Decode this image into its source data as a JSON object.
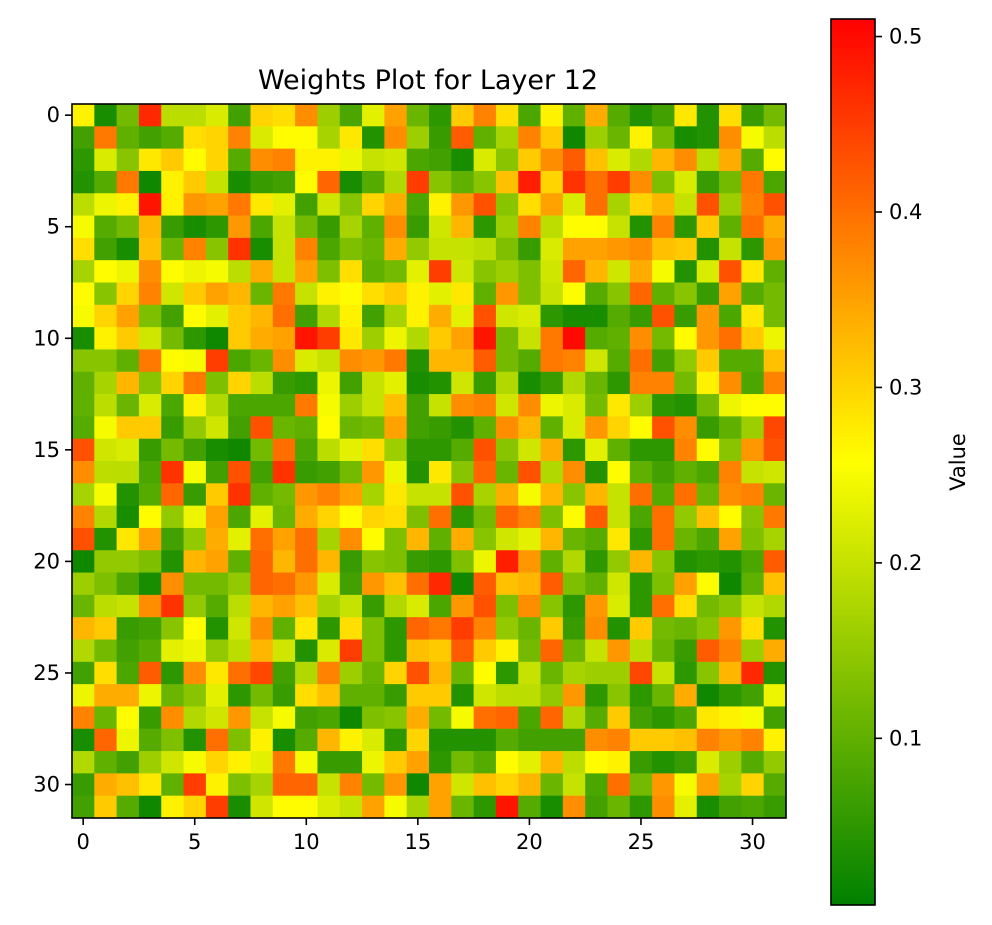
{
  "chart_data": {
    "type": "heatmap",
    "title": "Weights Plot for Layer 12",
    "rows": 32,
    "cols": 32,
    "x_ticks": [
      0,
      5,
      10,
      15,
      20,
      25,
      30
    ],
    "y_ticks": [
      0,
      5,
      10,
      15,
      20,
      25,
      30
    ],
    "colorbar": {
      "label": "Value",
      "min": 0.005,
      "max": 0.51,
      "ticks": [
        0.1,
        0.2,
        0.3,
        0.4,
        0.5
      ],
      "colors": [
        "#008000",
        "#ffff00",
        "#ff0000"
      ]
    },
    "values": [
      [
        0.27,
        0.03,
        0.12,
        0.47,
        0.19,
        0.19,
        0.22,
        0.07,
        0.3,
        0.29,
        0.37,
        0.16,
        0.08,
        0.23,
        0.35,
        0.11,
        0.05,
        0.31,
        0.38,
        0.29,
        0.08,
        0.27,
        0.1,
        0.34,
        0.09,
        0.04,
        0.07,
        0.28,
        0.04,
        0.29,
        0.06,
        0.12
      ],
      [
        0.07,
        0.39,
        0.1,
        0.07,
        0.09,
        0.29,
        0.3,
        0.38,
        0.22,
        0.26,
        0.26,
        0.17,
        0.28,
        0.04,
        0.37,
        0.16,
        0.06,
        0.42,
        0.1,
        0.17,
        0.38,
        0.31,
        0.02,
        0.16,
        0.11,
        0.27,
        0.12,
        0.03,
        0.04,
        0.37,
        0.25,
        0.19
      ],
      [
        0.05,
        0.22,
        0.14,
        0.28,
        0.31,
        0.26,
        0.3,
        0.09,
        0.37,
        0.38,
        0.27,
        0.27,
        0.24,
        0.2,
        0.21,
        0.08,
        0.07,
        0.03,
        0.22,
        0.14,
        0.31,
        0.37,
        0.42,
        0.32,
        0.22,
        0.18,
        0.33,
        0.37,
        0.19,
        0.34,
        0.09,
        0.26
      ],
      [
        0.04,
        0.09,
        0.39,
        0.02,
        0.27,
        0.31,
        0.2,
        0.03,
        0.06,
        0.07,
        0.26,
        0.41,
        0.03,
        0.09,
        0.18,
        0.45,
        0.14,
        0.1,
        0.14,
        0.32,
        0.48,
        0.3,
        0.46,
        0.4,
        0.45,
        0.37,
        0.13,
        0.22,
        0.06,
        0.12,
        0.39,
        0.08
      ],
      [
        0.19,
        0.24,
        0.27,
        0.49,
        0.27,
        0.36,
        0.35,
        0.39,
        0.28,
        0.23,
        0.07,
        0.21,
        0.14,
        0.3,
        0.34,
        0.08,
        0.27,
        0.36,
        0.43,
        0.14,
        0.29,
        0.35,
        0.22,
        0.4,
        0.17,
        0.3,
        0.33,
        0.2,
        0.43,
        0.16,
        0.38,
        0.43
      ],
      [
        0.25,
        0.09,
        0.12,
        0.33,
        0.06,
        0.03,
        0.05,
        0.36,
        0.08,
        0.2,
        0.12,
        0.06,
        0.17,
        0.1,
        0.37,
        0.06,
        0.21,
        0.33,
        0.05,
        0.16,
        0.38,
        0.19,
        0.26,
        0.26,
        0.2,
        0.04,
        0.38,
        0.05,
        0.31,
        0.1,
        0.4,
        0.34
      ],
      [
        0.29,
        0.07,
        0.03,
        0.32,
        0.11,
        0.38,
        0.14,
        0.46,
        0.03,
        0.2,
        0.38,
        0.08,
        0.13,
        0.11,
        0.34,
        0.15,
        0.2,
        0.2,
        0.19,
        0.13,
        0.06,
        0.22,
        0.35,
        0.35,
        0.36,
        0.37,
        0.32,
        0.31,
        0.04,
        0.2,
        0.05,
        0.36
      ],
      [
        0.17,
        0.26,
        0.24,
        0.37,
        0.26,
        0.24,
        0.25,
        0.19,
        0.34,
        0.2,
        0.35,
        0.13,
        0.29,
        0.1,
        0.12,
        0.23,
        0.45,
        0.21,
        0.14,
        0.16,
        0.13,
        0.21,
        0.41,
        0.33,
        0.21,
        0.34,
        0.25,
        0.04,
        0.22,
        0.43,
        0.28,
        0.1
      ],
      [
        0.26,
        0.14,
        0.3,
        0.38,
        0.21,
        0.31,
        0.35,
        0.33,
        0.11,
        0.39,
        0.2,
        0.27,
        0.26,
        0.29,
        0.31,
        0.27,
        0.23,
        0.28,
        0.1,
        0.36,
        0.13,
        0.2,
        0.26,
        0.09,
        0.14,
        0.41,
        0.1,
        0.14,
        0.06,
        0.35,
        0.09,
        0.12
      ],
      [
        0.25,
        0.3,
        0.35,
        0.13,
        0.07,
        0.26,
        0.23,
        0.31,
        0.33,
        0.4,
        0.07,
        0.18,
        0.27,
        0.07,
        0.17,
        0.27,
        0.34,
        0.23,
        0.43,
        0.21,
        0.22,
        0.05,
        0.03,
        0.03,
        0.09,
        0.06,
        0.43,
        0.06,
        0.36,
        0.08,
        0.28,
        0.12
      ],
      [
        0.03,
        0.27,
        0.31,
        0.21,
        0.12,
        0.05,
        0.02,
        0.31,
        0.34,
        0.35,
        0.49,
        0.45,
        0.28,
        0.16,
        0.24,
        0.18,
        0.31,
        0.35,
        0.49,
        0.12,
        0.2,
        0.39,
        0.5,
        0.09,
        0.1,
        0.37,
        0.12,
        0.26,
        0.36,
        0.4,
        0.31,
        0.24
      ],
      [
        0.14,
        0.14,
        0.1,
        0.39,
        0.26,
        0.25,
        0.45,
        0.08,
        0.11,
        0.37,
        0.22,
        0.2,
        0.37,
        0.36,
        0.39,
        0.04,
        0.33,
        0.33,
        0.42,
        0.12,
        0.09,
        0.39,
        0.38,
        0.21,
        0.09,
        0.4,
        0.07,
        0.15,
        0.31,
        0.09,
        0.09,
        0.32
      ],
      [
        0.1,
        0.17,
        0.33,
        0.14,
        0.3,
        0.39,
        0.13,
        0.3,
        0.19,
        0.06,
        0.05,
        0.24,
        0.07,
        0.2,
        0.23,
        0.03,
        0.04,
        0.21,
        0.06,
        0.18,
        0.03,
        0.06,
        0.18,
        0.11,
        0.05,
        0.38,
        0.38,
        0.12,
        0.27,
        0.37,
        0.08,
        0.38
      ],
      [
        0.1,
        0.19,
        0.11,
        0.22,
        0.08,
        0.27,
        0.18,
        0.08,
        0.08,
        0.08,
        0.39,
        0.25,
        0.16,
        0.2,
        0.32,
        0.07,
        0.2,
        0.37,
        0.38,
        0.21,
        0.37,
        0.24,
        0.22,
        0.12,
        0.28,
        0.16,
        0.05,
        0.04,
        0.12,
        0.24,
        0.26,
        0.26
      ],
      [
        0.09,
        0.25,
        0.31,
        0.31,
        0.06,
        0.15,
        0.21,
        0.07,
        0.43,
        0.11,
        0.1,
        0.26,
        0.11,
        0.12,
        0.35,
        0.07,
        0.06,
        0.04,
        0.1,
        0.37,
        0.33,
        0.1,
        0.22,
        0.36,
        0.3,
        0.26,
        0.43,
        0.37,
        0.06,
        0.1,
        0.16,
        0.44
      ],
      [
        0.43,
        0.21,
        0.22,
        0.06,
        0.12,
        0.07,
        0.03,
        0.02,
        0.12,
        0.4,
        0.08,
        0.19,
        0.23,
        0.29,
        0.16,
        0.05,
        0.05,
        0.09,
        0.43,
        0.14,
        0.21,
        0.34,
        0.05,
        0.23,
        0.1,
        0.05,
        0.05,
        0.38,
        0.26,
        0.14,
        0.36,
        0.43
      ],
      [
        0.37,
        0.19,
        0.19,
        0.08,
        0.46,
        0.25,
        0.07,
        0.43,
        0.07,
        0.46,
        0.06,
        0.07,
        0.12,
        0.36,
        0.24,
        0.04,
        0.28,
        0.14,
        0.41,
        0.11,
        0.43,
        0.18,
        0.37,
        0.04,
        0.26,
        0.1,
        0.07,
        0.1,
        0.08,
        0.38,
        0.2,
        0.21
      ],
      [
        0.17,
        0.25,
        0.04,
        0.09,
        0.41,
        0.06,
        0.31,
        0.46,
        0.1,
        0.12,
        0.36,
        0.38,
        0.35,
        0.17,
        0.28,
        0.2,
        0.2,
        0.43,
        0.17,
        0.34,
        0.25,
        0.33,
        0.14,
        0.33,
        0.2,
        0.4,
        0.09,
        0.4,
        0.11,
        0.37,
        0.38,
        0.11
      ],
      [
        0.38,
        0.18,
        0.03,
        0.26,
        0.15,
        0.24,
        0.35,
        0.08,
        0.23,
        0.11,
        0.34,
        0.3,
        0.26,
        0.3,
        0.29,
        0.13,
        0.4,
        0.05,
        0.12,
        0.41,
        0.38,
        0.13,
        0.26,
        0.42,
        0.2,
        0.08,
        0.4,
        0.15,
        0.32,
        0.26,
        0.14,
        0.39
      ],
      [
        0.43,
        0.04,
        0.28,
        0.35,
        0.07,
        0.15,
        0.34,
        0.23,
        0.4,
        0.35,
        0.4,
        0.17,
        0.37,
        0.26,
        0.13,
        0.33,
        0.1,
        0.34,
        0.14,
        0.21,
        0.23,
        0.33,
        0.11,
        0.09,
        0.28,
        0.05,
        0.4,
        0.11,
        0.08,
        0.35,
        0.13,
        0.17
      ],
      [
        0.02,
        0.15,
        0.15,
        0.13,
        0.04,
        0.33,
        0.35,
        0.1,
        0.41,
        0.33,
        0.4,
        0.33,
        0.06,
        0.14,
        0.13,
        0.06,
        0.05,
        0.13,
        0.24,
        0.48,
        0.36,
        0.1,
        0.18,
        0.05,
        0.15,
        0.33,
        0.14,
        0.04,
        0.05,
        0.04,
        0.08,
        0.42
      ],
      [
        0.16,
        0.13,
        0.08,
        0.03,
        0.37,
        0.12,
        0.12,
        0.15,
        0.41,
        0.4,
        0.36,
        0.22,
        0.07,
        0.36,
        0.32,
        0.4,
        0.47,
        0.02,
        0.42,
        0.32,
        0.33,
        0.42,
        0.13,
        0.1,
        0.21,
        0.05,
        0.13,
        0.35,
        0.26,
        0.02,
        0.1,
        0.32
      ],
      [
        0.11,
        0.19,
        0.2,
        0.37,
        0.46,
        0.15,
        0.09,
        0.19,
        0.33,
        0.35,
        0.32,
        0.17,
        0.2,
        0.06,
        0.18,
        0.22,
        0.08,
        0.36,
        0.43,
        0.13,
        0.37,
        0.14,
        0.05,
        0.36,
        0.22,
        0.05,
        0.4,
        0.29,
        0.12,
        0.14,
        0.2,
        0.18
      ],
      [
        0.33,
        0.31,
        0.06,
        0.07,
        0.14,
        0.26,
        0.04,
        0.21,
        0.37,
        0.1,
        0.28,
        0.05,
        0.29,
        0.13,
        0.05,
        0.41,
        0.39,
        0.45,
        0.38,
        0.15,
        0.11,
        0.31,
        0.06,
        0.37,
        0.04,
        0.31,
        0.12,
        0.11,
        0.14,
        0.36,
        0.29,
        0.04
      ],
      [
        0.18,
        0.12,
        0.07,
        0.09,
        0.23,
        0.24,
        0.15,
        0.19,
        0.33,
        0.21,
        0.04,
        0.22,
        0.45,
        0.13,
        0.05,
        0.32,
        0.31,
        0.42,
        0.31,
        0.27,
        0.12,
        0.41,
        0.11,
        0.2,
        0.36,
        0.19,
        0.11,
        0.06,
        0.42,
        0.38,
        0.16,
        0.34
      ],
      [
        0.07,
        0.29,
        0.08,
        0.42,
        0.05,
        0.37,
        0.28,
        0.4,
        0.44,
        0.07,
        0.18,
        0.38,
        0.16,
        0.11,
        0.3,
        0.43,
        0.33,
        0.11,
        0.26,
        0.05,
        0.2,
        0.11,
        0.17,
        0.16,
        0.16,
        0.44,
        0.2,
        0.05,
        0.14,
        0.33,
        0.47,
        0.04
      ],
      [
        0.24,
        0.34,
        0.34,
        0.24,
        0.11,
        0.14,
        0.23,
        0.05,
        0.12,
        0.06,
        0.29,
        0.32,
        0.1,
        0.1,
        0.06,
        0.31,
        0.31,
        0.04,
        0.21,
        0.19,
        0.19,
        0.15,
        0.36,
        0.05,
        0.14,
        0.05,
        0.11,
        0.34,
        0.02,
        0.05,
        0.07,
        0.24
      ],
      [
        0.38,
        0.11,
        0.26,
        0.06,
        0.37,
        0.18,
        0.21,
        0.36,
        0.2,
        0.25,
        0.07,
        0.08,
        0.02,
        0.13,
        0.14,
        0.34,
        0.12,
        0.25,
        0.4,
        0.41,
        0.08,
        0.41,
        0.18,
        0.09,
        0.31,
        0.07,
        0.05,
        0.08,
        0.28,
        0.27,
        0.25,
        0.07
      ],
      [
        0.03,
        0.41,
        0.24,
        0.09,
        0.13,
        0.04,
        0.4,
        0.13,
        0.27,
        0.03,
        0.09,
        0.33,
        0.27,
        0.22,
        0.05,
        0.3,
        0.04,
        0.04,
        0.04,
        0.09,
        0.07,
        0.07,
        0.07,
        0.37,
        0.38,
        0.31,
        0.31,
        0.32,
        0.38,
        0.36,
        0.38,
        0.27
      ],
      [
        0.18,
        0.1,
        0.07,
        0.16,
        0.21,
        0.25,
        0.3,
        0.27,
        0.23,
        0.39,
        0.25,
        0.06,
        0.06,
        0.24,
        0.31,
        0.35,
        0.05,
        0.12,
        0.09,
        0.26,
        0.23,
        0.33,
        0.19,
        0.26,
        0.27,
        0.06,
        0.04,
        0.06,
        0.22,
        0.16,
        0.09,
        0.15
      ],
      [
        0.06,
        0.34,
        0.32,
        0.28,
        0.1,
        0.45,
        0.27,
        0.13,
        0.17,
        0.41,
        0.41,
        0.2,
        0.38,
        0.12,
        0.36,
        0.02,
        0.35,
        0.21,
        0.32,
        0.3,
        0.33,
        0.11,
        0.2,
        0.08,
        0.4,
        0.12,
        0.36,
        0.25,
        0.35,
        0.17,
        0.3,
        0.09
      ],
      [
        0.07,
        0.31,
        0.09,
        0.02,
        0.27,
        0.3,
        0.45,
        0.03,
        0.21,
        0.26,
        0.26,
        0.22,
        0.2,
        0.35,
        0.25,
        0.17,
        0.35,
        0.11,
        0.05,
        0.49,
        0.09,
        0.03,
        0.37,
        0.07,
        0.11,
        0.05,
        0.37,
        0.23,
        0.03,
        0.07,
        0.08,
        0.06
      ]
    ]
  }
}
